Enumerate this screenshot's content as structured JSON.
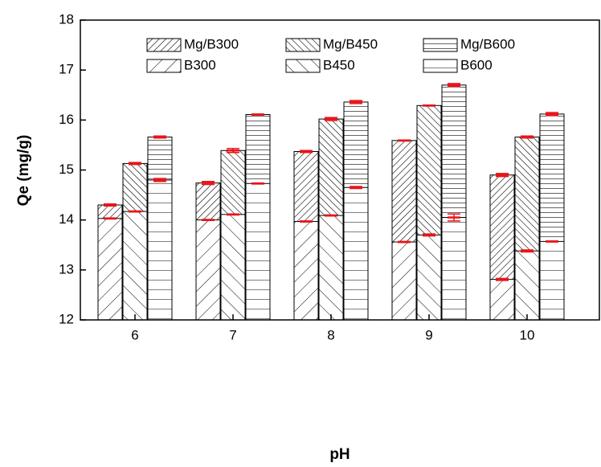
{
  "chart_data": {
    "type": "bar",
    "x_label": "pH",
    "y_label": "Qe (mg/g)",
    "categories": [
      "6",
      "7",
      "8",
      "9",
      "10"
    ],
    "ylim": [
      12,
      18
    ],
    "yticks": [
      12,
      13,
      14,
      15,
      16,
      17,
      18
    ],
    "error_color": "#e8141a",
    "series": [
      {
        "name": "Mg/B300",
        "group": 0,
        "pattern": "dense-slash",
        "values": [
          14.3,
          14.74,
          15.37,
          15.59,
          14.9
        ],
        "errors": [
          0.02,
          0.03,
          0.02,
          0.01,
          0.03
        ]
      },
      {
        "name": "Mg/B450",
        "group": 1,
        "pattern": "dense-backslash",
        "values": [
          15.13,
          15.39,
          16.02,
          16.29,
          15.66
        ],
        "errors": [
          0.02,
          0.04,
          0.03,
          0.01,
          0.02
        ]
      },
      {
        "name": "Mg/B600",
        "group": 2,
        "pattern": "dense-horizontal",
        "values": [
          15.66,
          16.11,
          16.36,
          16.7,
          16.12
        ],
        "errors": [
          0.02,
          0.01,
          0.03,
          0.03,
          0.03
        ]
      },
      {
        "name": "B300",
        "group": 0,
        "pattern": "sparse-slash",
        "values": [
          14.03,
          14.0,
          13.97,
          13.56,
          12.81
        ],
        "errors": [
          0.01,
          0.01,
          0.01,
          0.01,
          0.02
        ]
      },
      {
        "name": "B450",
        "group": 1,
        "pattern": "sparse-backslash",
        "values": [
          14.17,
          14.11,
          14.09,
          13.7,
          13.38
        ],
        "errors": [
          0.01,
          0.01,
          0.01,
          0.02,
          0.02
        ]
      },
      {
        "name": "B600",
        "group": 2,
        "pattern": "sparse-horizontal",
        "values": [
          14.8,
          14.73,
          14.65,
          14.05,
          13.57
        ],
        "errors": [
          0.03,
          0.01,
          0.02,
          0.07,
          0.01
        ]
      }
    ]
  }
}
